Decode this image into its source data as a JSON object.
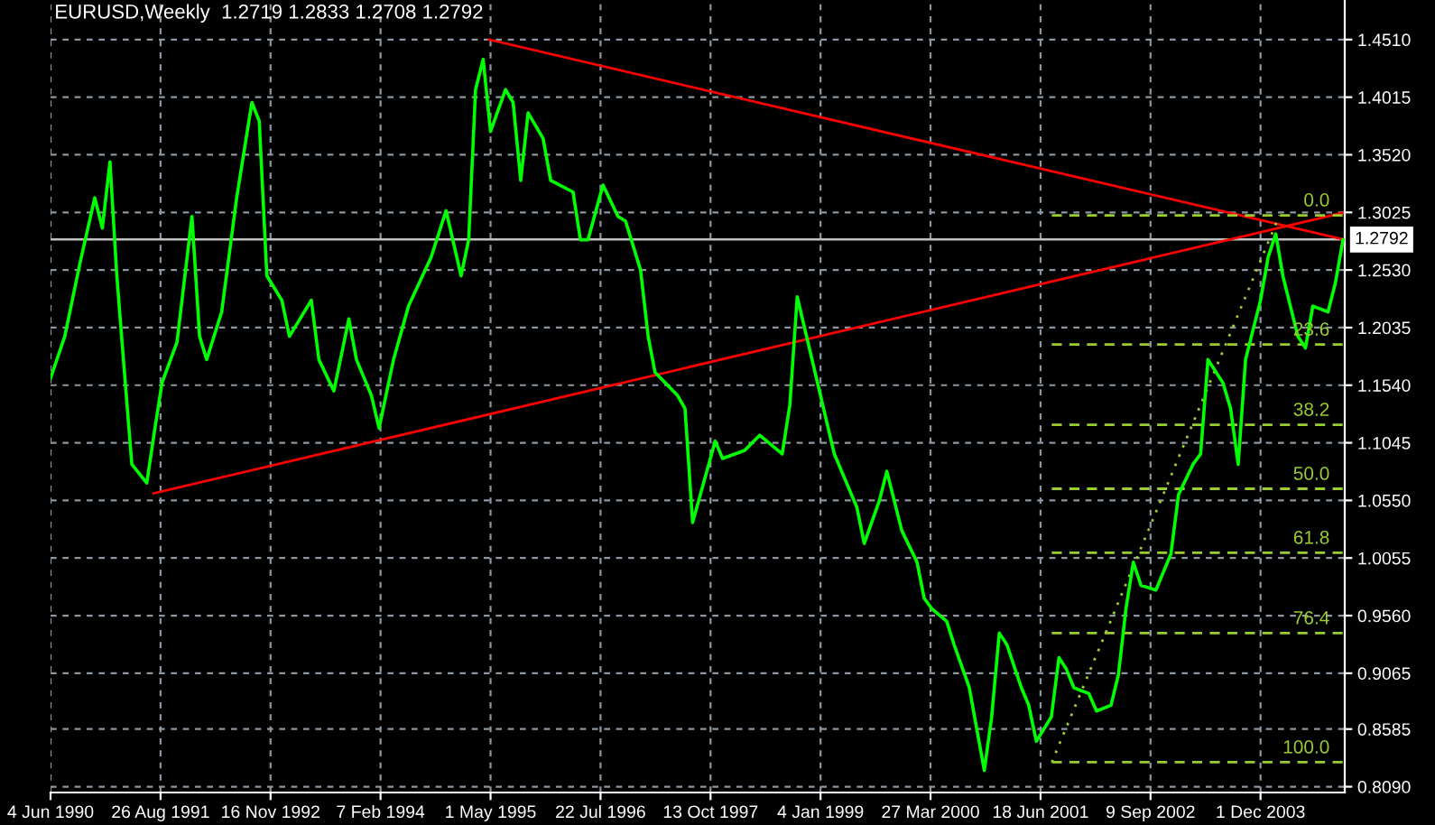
{
  "chart_data": {
    "type": "line",
    "title": "EURUSD,Weekly  1.2719 1.2833 1.2708 1.2792",
    "xlim": [
      "1990-06-04",
      "2004-11-08"
    ],
    "ylim": [
      0.804,
      1.485
    ],
    "xticks": [
      {
        "value": "1990-06-04",
        "label": "4 Jun 1990"
      },
      {
        "value": "1991-08-26",
        "label": "26 Aug 1991"
      },
      {
        "value": "1992-11-16",
        "label": "16 Nov 1992"
      },
      {
        "value": "1994-02-07",
        "label": "7 Feb 1994"
      },
      {
        "value": "1995-05-01",
        "label": "1 May 1995"
      },
      {
        "value": "1996-07-22",
        "label": "22 Jul 1996"
      },
      {
        "value": "1997-10-13",
        "label": "13 Oct 1997"
      },
      {
        "value": "1999-01-04",
        "label": "4 Jan 1999"
      },
      {
        "value": "2000-03-27",
        "label": "27 Mar 2000"
      },
      {
        "value": "2001-06-18",
        "label": "18 Jun 2001"
      },
      {
        "value": "2002-09-09",
        "label": "9 Sep 2002"
      },
      {
        "value": "2003-12-01",
        "label": "1 Dec 2003"
      }
    ],
    "yticks": [
      {
        "value": 0.809,
        "label": "0.8090"
      },
      {
        "value": 0.8585,
        "label": "0.8585"
      },
      {
        "value": 0.9065,
        "label": "0.9065"
      },
      {
        "value": 0.956,
        "label": "0.9560"
      },
      {
        "value": 1.0055,
        "label": "1.0055"
      },
      {
        "value": 1.055,
        "label": "1.0550"
      },
      {
        "value": 1.1045,
        "label": "1.1045"
      },
      {
        "value": 1.154,
        "label": "1.1540"
      },
      {
        "value": 1.2035,
        "label": "1.2035"
      },
      {
        "value": 1.253,
        "label": "1.2530"
      },
      {
        "value": 1.3025,
        "label": "1.3025"
      },
      {
        "value": 1.352,
        "label": "1.3520"
      },
      {
        "value": 1.4015,
        "label": "1.4015"
      },
      {
        "value": 1.451,
        "label": "1.4510"
      }
    ],
    "grid": true,
    "ref_lines": [
      {
        "axis": "y",
        "value": 1.2792,
        "label": "1.2792",
        "color": "#c0c0c0",
        "line_style": "solid"
      }
    ],
    "series": [
      {
        "color": "#00ff00",
        "line_style": "solid",
        "x": [
          "1990-06-04",
          "1990-08",
          "1990-10",
          "1990-12",
          "1991-01",
          "1991-02",
          "1991-03",
          "1991-04",
          "1991-05",
          "1991-07",
          "1991-08",
          "1991-09",
          "1991-11",
          "1992-01",
          "1992-02",
          "1992-03",
          "1992-05",
          "1992-07",
          "1992-09",
          "1992-10",
          "1992-11",
          "1993-01",
          "1993-02",
          "1993-05",
          "1993-06",
          "1993-08",
          "1993-10",
          "1993-11",
          "1994-01",
          "1994-02",
          "1994-04",
          "1994-06",
          "1994-09",
          "1994-11",
          "1995-01",
          "1995-02",
          "1995-03",
          "1995-04",
          "1995-05",
          "1995-07",
          "1995-08",
          "1995-09",
          "1995-10",
          "1995-12",
          "1996-01",
          "1996-04",
          "1996-05",
          "1996-06",
          "1996-08",
          "1996-10",
          "1996-11",
          "1997-01",
          "1997-02",
          "1997-03",
          "1997-06",
          "1997-07",
          "1997-08",
          "1997-11",
          "1997-12",
          "1998-03",
          "1998-05",
          "1998-08",
          "1998-09",
          "1998-10",
          "1999-03",
          "1999-06",
          "1999-07",
          "1999-09",
          "1999-10",
          "1999-12",
          "2000-02",
          "2000-03",
          "2000-04",
          "2000-06",
          "2000-07",
          "2000-09",
          "2000-10",
          "2000-11",
          "2000-12",
          "2001-01",
          "2001-02",
          "2001-04",
          "2001-05",
          "2001-06",
          "2001-08",
          "2001-09",
          "2001-10",
          "2001-11",
          "2002-01",
          "2002-02",
          "2002-04",
          "2002-05",
          "2002-06",
          "2002-07",
          "2002-08",
          "2002-10",
          "2002-12",
          "2003-01",
          "2003-03",
          "2003-04",
          "2003-05",
          "2003-07",
          "2003-08",
          "2003-09",
          "2003-10",
          "2003-12",
          "2004-01",
          "2004-02",
          "2004-03",
          "2004-05",
          "2004-06",
          "2004-07",
          "2004-09",
          "2004-10",
          "2004-11"
        ],
        "values": [
          1.16,
          1.196,
          1.258,
          1.315,
          1.289,
          1.346,
          1.248,
          1.165,
          1.086,
          1.07,
          1.114,
          1.156,
          1.191,
          1.299,
          1.196,
          1.176,
          1.217,
          1.315,
          1.397,
          1.381,
          1.248,
          1.227,
          1.196,
          1.227,
          1.176,
          1.149,
          1.211,
          1.176,
          1.145,
          1.117,
          1.176,
          1.222,
          1.264,
          1.304,
          1.248,
          1.279,
          1.408,
          1.434,
          1.372,
          1.408,
          1.397,
          1.33,
          1.388,
          1.366,
          1.33,
          1.32,
          1.279,
          1.279,
          1.326,
          1.299,
          1.295,
          1.253,
          1.196,
          1.165,
          1.145,
          1.134,
          1.036,
          1.106,
          1.091,
          1.098,
          1.111,
          1.095,
          1.137,
          1.23,
          1.095,
          1.049,
          1.018,
          1.055,
          1.08,
          1.029,
          1.002,
          0.971,
          0.962,
          0.951,
          0.931,
          0.894,
          0.859,
          0.823,
          0.869,
          0.941,
          0.931,
          0.894,
          0.879,
          0.848,
          0.869,
          0.92,
          0.91,
          0.894,
          0.889,
          0.874,
          0.879,
          0.905,
          0.962,
          1.002,
          0.982,
          0.978,
          1.009,
          1.06,
          1.086,
          1.095,
          1.176,
          1.156,
          1.134,
          1.086,
          1.176,
          1.227,
          1.264,
          1.284,
          1.248,
          1.196,
          1.186,
          1.222,
          1.217,
          1.242,
          1.279
        ]
      },
      {
        "color": "#ff0000",
        "line_style": "solid",
        "x": [
          "1995-04-24",
          "2004-11-08"
        ],
        "values": [
          1.451,
          1.279
        ]
      },
      {
        "color": "#ff0000",
        "line_style": "solid",
        "x": [
          "1991-07-29",
          "2004-11-08"
        ],
        "values": [
          1.061,
          1.3025
        ]
      },
      {
        "color": "#9acd32",
        "line_style": "dotted",
        "x": [
          "2001-08-03",
          "2004-02-16"
        ],
        "values": [
          0.83,
          1.3
        ]
      },
      {
        "name": "0.0",
        "color": "#9acd32",
        "line_style": "dashed",
        "x": [
          "2001-08-03",
          "2004-11-08"
        ],
        "values": [
          1.3,
          1.3
        ]
      },
      {
        "name": "23.6",
        "color": "#9acd32",
        "line_style": "dashed",
        "x": [
          "2001-08-03",
          "2004-11-08"
        ],
        "values": [
          1.189,
          1.189
        ]
      },
      {
        "name": "38.2",
        "color": "#9acd32",
        "line_style": "dashed",
        "x": [
          "2001-08-03",
          "2004-11-08"
        ],
        "values": [
          1.12,
          1.12
        ]
      },
      {
        "name": "50.0",
        "color": "#9acd32",
        "line_style": "dashed",
        "x": [
          "2001-08-03",
          "2004-11-08"
        ],
        "values": [
          1.065,
          1.065
        ]
      },
      {
        "name": "61.8",
        "color": "#9acd32",
        "line_style": "dashed",
        "x": [
          "2001-08-03",
          "2004-11-08"
        ],
        "values": [
          1.01,
          1.01
        ]
      },
      {
        "name": "76.4",
        "color": "#9acd32",
        "line_style": "dashed",
        "x": [
          "2001-08-03",
          "2004-11-08"
        ],
        "values": [
          0.941,
          0.941
        ]
      },
      {
        "name": "100.0",
        "color": "#9acd32",
        "line_style": "dashed",
        "x": [
          "2001-08-03",
          "2004-11-08"
        ],
        "values": [
          0.83,
          0.83
        ]
      }
    ]
  }
}
